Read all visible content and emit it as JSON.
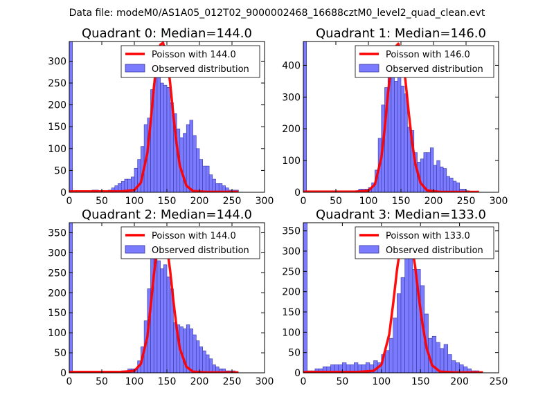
{
  "figure": {
    "suptitle": "Data file: modeM0/AS1A05_012T02_9000002468_16688cztM0_level2_quad_clean.evt"
  },
  "colors": {
    "bar_fill": "#7b7bff",
    "bar_edge": "#3535a0",
    "poisson_line": "#ff0000"
  },
  "chart_data": [
    {
      "type": "bar",
      "title": "Quadrant 0: Median=144.0",
      "median": 144.0,
      "xlim": [
        0,
        300
      ],
      "ylim": [
        0,
        345
      ],
      "xticks": [
        0,
        50,
        100,
        150,
        200,
        250,
        300
      ],
      "yticks": [
        0,
        50,
        100,
        150,
        200,
        250,
        300
      ],
      "bin_width": 5,
      "legend": [
        "Poisson with 144.0",
        "Observed distribution"
      ],
      "legend_position": "top-right",
      "first_bin": {
        "x": 0,
        "y": 345
      },
      "bins": [
        [
          35,
          5
        ],
        [
          40,
          5
        ],
        [
          60,
          5
        ],
        [
          65,
          10
        ],
        [
          70,
          15
        ],
        [
          75,
          20
        ],
        [
          80,
          25
        ],
        [
          85,
          30
        ],
        [
          90,
          30
        ],
        [
          95,
          35
        ],
        [
          100,
          55
        ],
        [
          105,
          75
        ],
        [
          110,
          105
        ],
        [
          115,
          155
        ],
        [
          120,
          170
        ],
        [
          125,
          235
        ],
        [
          130,
          300
        ],
        [
          135,
          325
        ],
        [
          140,
          250
        ],
        [
          145,
          245
        ],
        [
          150,
          240
        ],
        [
          155,
          205
        ],
        [
          160,
          180
        ],
        [
          165,
          145
        ],
        [
          170,
          125
        ],
        [
          175,
          135
        ],
        [
          180,
          155
        ],
        [
          185,
          165
        ],
        [
          190,
          130
        ],
        [
          195,
          100
        ],
        [
          200,
          75
        ],
        [
          205,
          60
        ],
        [
          210,
          60
        ],
        [
          215,
          40
        ],
        [
          220,
          30
        ],
        [
          225,
          20
        ],
        [
          230,
          20
        ],
        [
          235,
          15
        ],
        [
          240,
          10
        ],
        [
          245,
          5
        ],
        [
          250,
          5
        ],
        [
          255,
          5
        ]
      ],
      "poisson": {
        "x": [
          0,
          60,
          80,
          100,
          110,
          120,
          125,
          130,
          135,
          140,
          144,
          150,
          155,
          160,
          165,
          170,
          180,
          190,
          210,
          260
        ],
        "y": [
          2,
          2,
          2,
          5,
          22,
          90,
          160,
          240,
          305,
          338,
          342,
          310,
          250,
          175,
          110,
          60,
          15,
          3,
          1,
          1
        ]
      }
    },
    {
      "type": "bar",
      "title": "Quadrant 1: Median=146.0",
      "median": 146.0,
      "xlim": [
        0,
        300
      ],
      "ylim": [
        0,
        475
      ],
      "xticks": [
        0,
        50,
        100,
        150,
        200,
        250,
        300
      ],
      "yticks": [
        0,
        100,
        200,
        300,
        400
      ],
      "bin_width": 5,
      "legend": [
        "Poisson with 146.0",
        "Observed distribution"
      ],
      "legend_position": "top-right",
      "first_bin": {
        "x": 0,
        "y": 475
      },
      "bins": [
        [
          80,
          5
        ],
        [
          85,
          10
        ],
        [
          90,
          10
        ],
        [
          95,
          10
        ],
        [
          100,
          15
        ],
        [
          105,
          30
        ],
        [
          110,
          70
        ],
        [
          115,
          170
        ],
        [
          120,
          275
        ],
        [
          125,
          330
        ],
        [
          130,
          450
        ],
        [
          135,
          455
        ],
        [
          140,
          350
        ],
        [
          145,
          365
        ],
        [
          150,
          335
        ],
        [
          155,
          310
        ],
        [
          160,
          205
        ],
        [
          165,
          195
        ],
        [
          170,
          125
        ],
        [
          175,
          95
        ],
        [
          180,
          105
        ],
        [
          185,
          125
        ],
        [
          190,
          125
        ],
        [
          195,
          140
        ],
        [
          200,
          85
        ],
        [
          205,
          100
        ],
        [
          210,
          80
        ],
        [
          215,
          75
        ],
        [
          220,
          50
        ],
        [
          225,
          45
        ],
        [
          230,
          35
        ],
        [
          235,
          30
        ],
        [
          240,
          10
        ],
        [
          245,
          10
        ],
        [
          250,
          5
        ]
      ],
      "poisson": {
        "x": [
          0,
          60,
          80,
          100,
          110,
          120,
          125,
          130,
          135,
          140,
          146,
          152,
          157,
          162,
          167,
          172,
          180,
          190,
          210,
          270
        ],
        "y": [
          2,
          2,
          2,
          5,
          25,
          110,
          200,
          310,
          400,
          455,
          468,
          430,
          350,
          250,
          160,
          90,
          30,
          6,
          1,
          1
        ]
      }
    },
    {
      "type": "bar",
      "title": "Quadrant 2: Median=144.0",
      "median": 144.0,
      "xlim": [
        0,
        300
      ],
      "ylim": [
        0,
        375
      ],
      "xticks": [
        0,
        50,
        100,
        150,
        200,
        250,
        300
      ],
      "yticks": [
        0,
        50,
        100,
        150,
        200,
        250,
        300,
        350
      ],
      "bin_width": 5,
      "legend": [
        "Poisson with 144.0",
        "Observed distribution"
      ],
      "legend_position": "top-right",
      "first_bin": {
        "x": 0,
        "y": 375
      },
      "bins": [
        [
          80,
          5
        ],
        [
          85,
          5
        ],
        [
          90,
          10
        ],
        [
          95,
          10
        ],
        [
          100,
          10
        ],
        [
          105,
          30
        ],
        [
          110,
          65
        ],
        [
          115,
          130
        ],
        [
          120,
          210
        ],
        [
          125,
          300
        ],
        [
          130,
          345
        ],
        [
          135,
          280
        ],
        [
          140,
          260
        ],
        [
          145,
          270
        ],
        [
          150,
          240
        ],
        [
          155,
          210
        ],
        [
          160,
          125
        ],
        [
          165,
          120
        ],
        [
          170,
          115
        ],
        [
          175,
          110
        ],
        [
          180,
          120
        ],
        [
          185,
          110
        ],
        [
          190,
          95
        ],
        [
          195,
          80
        ],
        [
          200,
          65
        ],
        [
          205,
          55
        ],
        [
          210,
          45
        ],
        [
          215,
          35
        ],
        [
          220,
          20
        ],
        [
          225,
          15
        ],
        [
          230,
          10
        ],
        [
          235,
          10
        ],
        [
          240,
          5
        ],
        [
          245,
          5
        ],
        [
          250,
          5
        ]
      ],
      "poisson": {
        "x": [
          0,
          60,
          80,
          100,
          110,
          120,
          125,
          130,
          135,
          140,
          144,
          150,
          155,
          160,
          165,
          170,
          180,
          190,
          210,
          260
        ],
        "y": [
          2,
          2,
          2,
          5,
          22,
          90,
          165,
          245,
          310,
          345,
          350,
          318,
          255,
          180,
          112,
          60,
          15,
          3,
          1,
          1
        ]
      }
    },
    {
      "type": "bar",
      "title": "Quadrant 3: Median=133.0",
      "median": 133.0,
      "xlim": [
        0,
        250
      ],
      "ylim": [
        0,
        370
      ],
      "xticks": [
        0,
        50,
        100,
        150,
        200,
        250
      ],
      "yticks": [
        0,
        50,
        100,
        150,
        200,
        250,
        300,
        350
      ],
      "bin_width": 5,
      "legend": [
        "Poisson with 133.0",
        "Observed distribution"
      ],
      "legend_position": "top-right",
      "first_bin": {
        "x": 0,
        "y": 370
      },
      "bins": [
        [
          5,
          5
        ],
        [
          10,
          5
        ],
        [
          15,
          10
        ],
        [
          20,
          10
        ],
        [
          25,
          15
        ],
        [
          30,
          15
        ],
        [
          35,
          20
        ],
        [
          40,
          20
        ],
        [
          45,
          20
        ],
        [
          50,
          25
        ],
        [
          55,
          20
        ],
        [
          60,
          20
        ],
        [
          65,
          25
        ],
        [
          70,
          20
        ],
        [
          75,
          20
        ],
        [
          80,
          25
        ],
        [
          85,
          20
        ],
        [
          90,
          30
        ],
        [
          95,
          25
        ],
        [
          100,
          45
        ],
        [
          105,
          55
        ],
        [
          110,
          85
        ],
        [
          115,
          135
        ],
        [
          120,
          195
        ],
        [
          125,
          235
        ],
        [
          130,
          345
        ],
        [
          135,
          300
        ],
        [
          140,
          255
        ],
        [
          145,
          255
        ],
        [
          150,
          215
        ],
        [
          155,
          145
        ],
        [
          160,
          85
        ],
        [
          165,
          90
        ],
        [
          170,
          75
        ],
        [
          175,
          60
        ],
        [
          180,
          70
        ],
        [
          185,
          45
        ],
        [
          190,
          30
        ],
        [
          195,
          25
        ],
        [
          200,
          20
        ],
        [
          205,
          15
        ],
        [
          210,
          10
        ],
        [
          215,
          5
        ],
        [
          220,
          5
        ]
      ],
      "poisson": {
        "x": [
          0,
          50,
          70,
          90,
          100,
          110,
          115,
          120,
          125,
          130,
          133,
          138,
          143,
          148,
          153,
          158,
          165,
          175,
          195,
          230
        ],
        "y": [
          2,
          2,
          2,
          5,
          20,
          95,
          170,
          255,
          320,
          350,
          354,
          325,
          265,
          185,
          115,
          60,
          18,
          3,
          1,
          1
        ]
      }
    }
  ]
}
